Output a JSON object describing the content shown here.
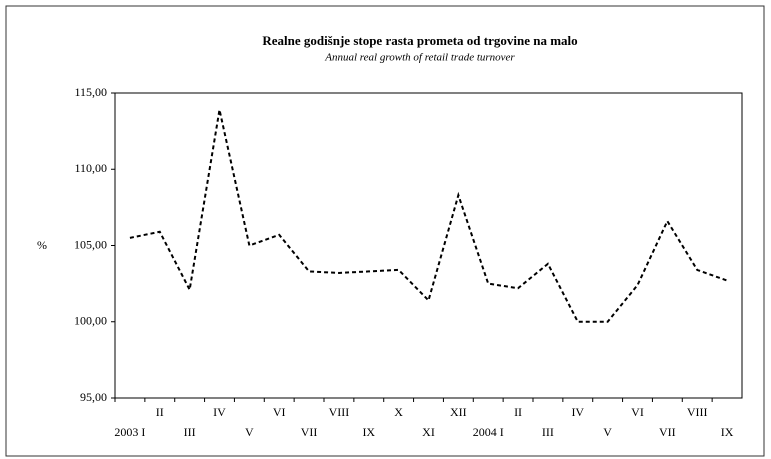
{
  "chart_data": {
    "type": "line",
    "title": "Realne godišnje stope rasta prometa  od trgovine na malo",
    "subtitle": "Annual real growth of retail trade turnover",
    "ylabel": "%",
    "categories": [
      "2003 I",
      "II",
      "III",
      "IV",
      "V",
      "VI",
      "VII",
      "VIII",
      "IX",
      "X",
      "XI",
      "XII",
      "2004 I",
      "II",
      "III",
      "IV",
      "V",
      "VI",
      "VII",
      "VIII",
      "IX"
    ],
    "series": [
      {
        "name": "Annual real growth",
        "color": "#000000",
        "values": [
          105.5,
          105.9,
          102.1,
          113.9,
          105.0,
          105.7,
          103.3,
          103.2,
          103.3,
          103.4,
          101.4,
          108.3,
          102.5,
          102.2,
          103.8,
          100.0,
          100.0,
          102.4,
          106.6,
          103.4,
          102.7
        ]
      }
    ],
    "ylim": [
      95,
      115
    ],
    "yticks": [
      {
        "value": 95,
        "label": "95,00"
      },
      {
        "value": 100,
        "label": "100,00"
      },
      {
        "value": 105,
        "label": "105,00"
      },
      {
        "value": 110,
        "label": "110,00"
      },
      {
        "value": 115,
        "label": "115,00"
      }
    ]
  }
}
